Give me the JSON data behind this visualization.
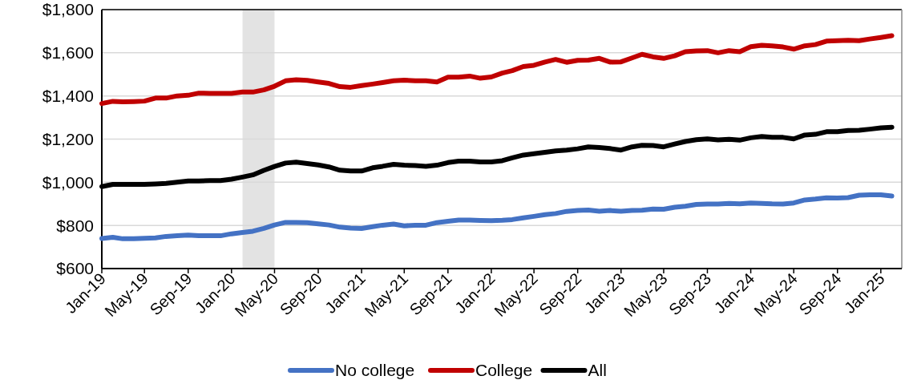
{
  "chart_data": {
    "type": "line",
    "x": [
      "2019-01",
      "2019-02",
      "2019-03",
      "2019-04",
      "2019-05",
      "2019-06",
      "2019-07",
      "2019-08",
      "2019-09",
      "2019-10",
      "2019-11",
      "2019-12",
      "2020-01",
      "2020-02",
      "2020-03",
      "2020-04",
      "2020-05",
      "2020-06",
      "2020-07",
      "2020-08",
      "2020-09",
      "2020-10",
      "2020-11",
      "2020-12",
      "2021-01",
      "2021-02",
      "2021-03",
      "2021-04",
      "2021-05",
      "2021-06",
      "2021-07",
      "2021-08",
      "2021-09",
      "2021-10",
      "2021-11",
      "2021-12",
      "2022-01",
      "2022-02",
      "2022-03",
      "2022-04",
      "2022-05",
      "2022-06",
      "2022-07",
      "2022-08",
      "2022-09",
      "2022-10",
      "2022-11",
      "2022-12",
      "2023-01",
      "2023-02",
      "2023-03",
      "2023-04",
      "2023-05",
      "2023-06",
      "2023-07",
      "2023-08",
      "2023-09",
      "2023-10",
      "2023-11",
      "2023-12",
      "2024-01",
      "2024-02",
      "2024-03",
      "2024-04",
      "2024-05",
      "2024-06",
      "2024-07",
      "2024-08",
      "2024-09",
      "2024-10",
      "2024-11",
      "2024-12",
      "2025-01",
      "2025-02"
    ],
    "series": [
      {
        "name": "No college",
        "color": "#4472c4",
        "values": [
          739,
          745,
          738,
          738,
          740,
          742,
          749,
          752,
          755,
          752,
          752,
          752,
          761,
          767,
          773,
          786,
          802,
          814,
          814,
          813,
          807,
          802,
          792,
          788,
          786,
          794,
          801,
          806,
          798,
          801,
          801,
          813,
          819,
          825,
          825,
          823,
          822,
          824,
          827,
          835,
          842,
          850,
          855,
          865,
          869,
          871,
          866,
          869,
          866,
          869,
          870,
          876,
          875,
          884,
          889,
          897,
          899,
          899,
          902,
          900,
          904,
          902,
          900,
          899,
          904,
          918,
          922,
          928,
          927,
          929,
          940,
          942,
          942,
          936
        ]
      },
      {
        "name": "College",
        "color": "#c00000",
        "values": [
          1365,
          1375,
          1373,
          1374,
          1376,
          1390,
          1390,
          1400,
          1403,
          1413,
          1412,
          1412,
          1412,
          1418,
          1418,
          1428,
          1445,
          1470,
          1475,
          1472,
          1465,
          1458,
          1443,
          1440,
          1448,
          1455,
          1462,
          1470,
          1473,
          1470,
          1470,
          1465,
          1487,
          1487,
          1492,
          1482,
          1488,
          1506,
          1517,
          1536,
          1542,
          1557,
          1569,
          1556,
          1565,
          1566,
          1574,
          1557,
          1558,
          1576,
          1593,
          1581,
          1574,
          1586,
          1605,
          1609,
          1610,
          1600,
          1610,
          1605,
          1628,
          1635,
          1632,
          1627,
          1617,
          1632,
          1638,
          1654,
          1656,
          1658,
          1656,
          1664,
          1671,
          1679
        ]
      },
      {
        "name": "All",
        "color": "#000000",
        "values": [
          980,
          990,
          990,
          990,
          990,
          992,
          995,
          1000,
          1006,
          1006,
          1008,
          1008,
          1014,
          1024,
          1034,
          1055,
          1073,
          1089,
          1093,
          1087,
          1080,
          1071,
          1056,
          1052,
          1052,
          1067,
          1074,
          1083,
          1079,
          1077,
          1074,
          1079,
          1091,
          1098,
          1098,
          1094,
          1094,
          1100,
          1113,
          1126,
          1132,
          1139,
          1145,
          1149,
          1155,
          1164,
          1161,
          1156,
          1149,
          1164,
          1171,
          1170,
          1164,
          1177,
          1189,
          1197,
          1201,
          1196,
          1199,
          1195,
          1206,
          1212,
          1208,
          1208,
          1201,
          1219,
          1222,
          1234,
          1234,
          1240,
          1241,
          1246,
          1252,
          1255
        ]
      }
    ],
    "xlim": [
      "2019-01",
      "2025-03"
    ],
    "xticks": [
      {
        "value": "2019-01",
        "label": "Jan-19"
      },
      {
        "value": "2019-05",
        "label": "May-19"
      },
      {
        "value": "2019-09",
        "label": "Sep-19"
      },
      {
        "value": "2020-01",
        "label": "Jan-20"
      },
      {
        "value": "2020-05",
        "label": "May-20"
      },
      {
        "value": "2020-09",
        "label": "Sep-20"
      },
      {
        "value": "2021-01",
        "label": "Jan-21"
      },
      {
        "value": "2021-05",
        "label": "May-21"
      },
      {
        "value": "2021-09",
        "label": "Sep-21"
      },
      {
        "value": "2022-01",
        "label": "Jan-22"
      },
      {
        "value": "2022-05",
        "label": "May-22"
      },
      {
        "value": "2022-09",
        "label": "Sep-22"
      },
      {
        "value": "2023-01",
        "label": "Jan-23"
      },
      {
        "value": "2023-05",
        "label": "May-23"
      },
      {
        "value": "2023-09",
        "label": "Sep-23"
      },
      {
        "value": "2024-01",
        "label": "Jan-24"
      },
      {
        "value": "2024-05",
        "label": "May-24"
      },
      {
        "value": "2024-09",
        "label": "Sep-24"
      },
      {
        "value": "2025-01",
        "label": "Jan-25"
      }
    ],
    "ylim": [
      600,
      1800
    ],
    "yticks": [
      {
        "value": 600,
        "label": "$600"
      },
      {
        "value": 800,
        "label": "$800"
      },
      {
        "value": 1000,
        "label": "$1,000"
      },
      {
        "value": 1200,
        "label": "$1,200"
      },
      {
        "value": 1400,
        "label": "$1,400"
      },
      {
        "value": 1600,
        "label": "$1,600"
      },
      {
        "value": 1800,
        "label": "$1,800"
      }
    ],
    "bands": [
      {
        "axis": "x",
        "from": "2020-02",
        "to": "2020-05",
        "color": "#e3e3e3"
      }
    ],
    "grid": "y",
    "legend": "bottom",
    "marker": "none",
    "line_style": "solid"
  }
}
